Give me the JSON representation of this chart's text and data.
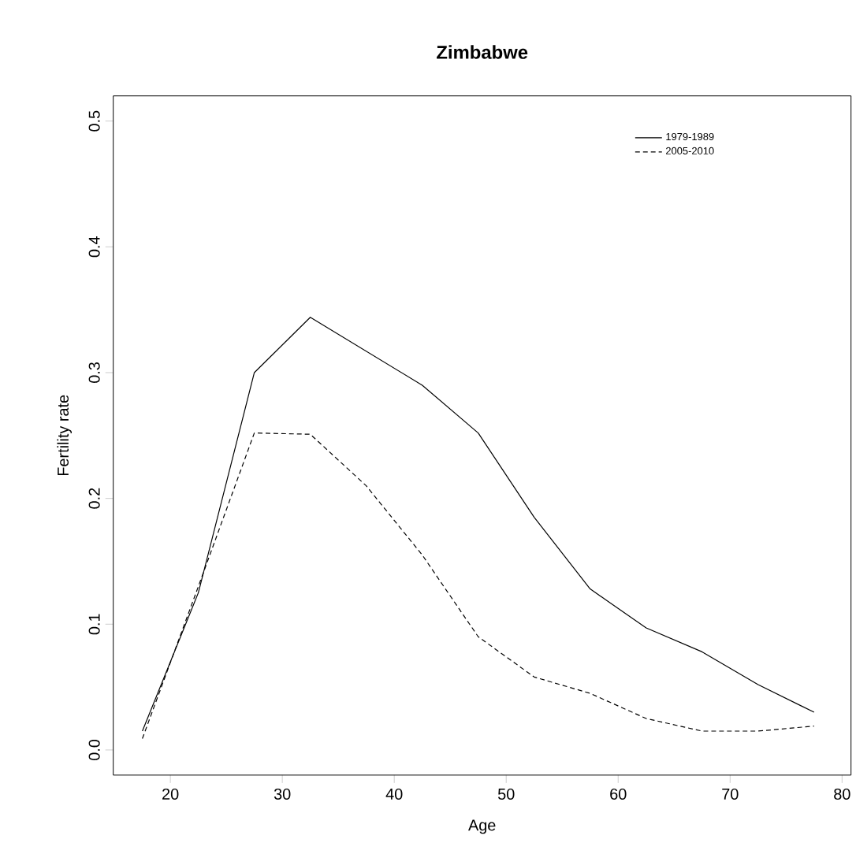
{
  "chart_data": {
    "type": "line",
    "title": "Zimbabwe",
    "xlabel": "Age",
    "ylabel": "Fertility rate",
    "x": [
      17.5,
      22.5,
      27.5,
      32.5,
      37.5,
      42.5,
      47.5,
      52.5,
      57.5,
      62.5,
      67.5,
      72.5,
      77.5
    ],
    "series": [
      {
        "name": "1979-1989",
        "color": "#000000",
        "line_style": "solid",
        "values": [
          0.015,
          0.125,
          0.3,
          0.344,
          0.317,
          0.29,
          0.252,
          0.185,
          0.128,
          0.097,
          0.078,
          0.052,
          0.03
        ]
      },
      {
        "name": "2005-2010",
        "color": "#000000",
        "line_style": "dashed",
        "values": [
          0.009,
          0.13,
          0.252,
          0.251,
          0.21,
          0.155,
          0.09,
          0.058,
          0.045,
          0.025,
          0.015,
          0.015,
          0.019
        ]
      }
    ],
    "xlim": [
      14.9,
      80.8
    ],
    "ylim": [
      -0.02,
      0.52
    ],
    "xticks": [
      20,
      30,
      40,
      50,
      60,
      70,
      80
    ],
    "yticks": [
      {
        "value": 0,
        "label": "0.0"
      },
      {
        "value": 0.1,
        "label": "0.1"
      },
      {
        "value": 0.2,
        "label": "0.2"
      },
      {
        "value": 0.3,
        "label": "0.3"
      },
      {
        "value": 0.4,
        "label": "0.4"
      },
      {
        "value": 0.5,
        "label": "0.5"
      }
    ],
    "legend": "top right",
    "grid": false,
    "marker": "none"
  }
}
